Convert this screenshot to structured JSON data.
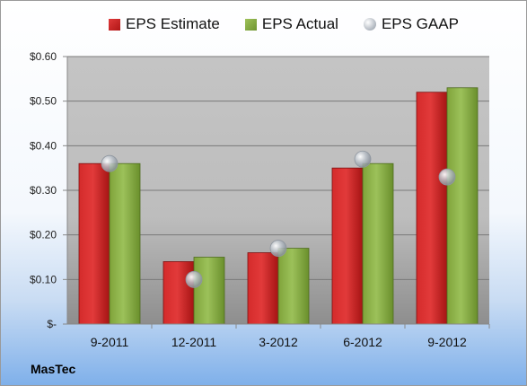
{
  "company": "MasTec",
  "legend": {
    "estimate": "EPS Estimate",
    "actual": "EPS Actual",
    "gaap": "EPS GAAP"
  },
  "colors": {
    "estimate": "#c8201f",
    "actual": "#8ab046",
    "gaap": "#b5bcc5",
    "plot_background": "#c8c8c8"
  },
  "chart_data": {
    "type": "bar",
    "categories": [
      "9-2011",
      "12-2011",
      "3-2012",
      "6-2012",
      "9-2012"
    ],
    "series": [
      {
        "name": "EPS Estimate",
        "kind": "bar",
        "values": [
          0.36,
          0.14,
          0.16,
          0.35,
          0.52
        ]
      },
      {
        "name": "EPS Actual",
        "kind": "bar",
        "values": [
          0.36,
          0.15,
          0.17,
          0.36,
          0.53
        ]
      },
      {
        "name": "EPS GAAP",
        "kind": "point",
        "values": [
          0.36,
          0.1,
          0.17,
          0.37,
          0.33
        ]
      }
    ],
    "y_ticks": [
      0,
      0.1,
      0.2,
      0.3,
      0.4,
      0.5,
      0.6
    ],
    "y_tick_labels": [
      "$-",
      "$0.10",
      "$0.20",
      "$0.30",
      "$0.40",
      "$0.50",
      "$0.60"
    ],
    "ylim": [
      0,
      0.6
    ],
    "grid": true,
    "legend_position": "top"
  }
}
